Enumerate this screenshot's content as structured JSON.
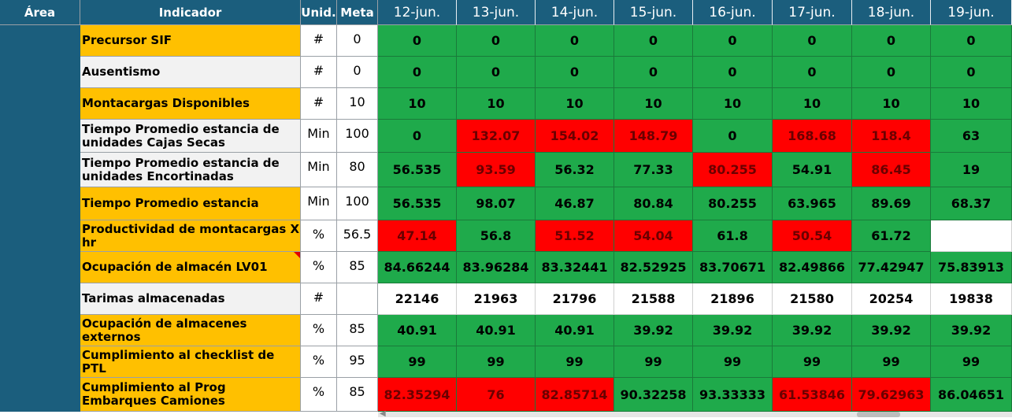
{
  "header": {
    "area": "Área",
    "indicador": "Indicador",
    "unid": "Unid.",
    "meta": "Meta",
    "dates": [
      "12-jun.",
      "13-jun.",
      "14-jun.",
      "15-jun.",
      "16-jun.",
      "17-jun.",
      "18-jun.",
      "19-jun."
    ]
  },
  "colors": {
    "header_bg": "#1b5e7d",
    "good": "#1faa4b",
    "bad": "#ff0000",
    "label_yellow": "#ffc000",
    "label_gray": "#f2f2f2"
  },
  "rows": [
    {
      "indicator": "Precursor SIF",
      "unit": "#",
      "meta": "0",
      "values": [
        "0",
        "0",
        "0",
        "0",
        "0",
        "0",
        "0",
        "0"
      ],
      "status": [
        "G",
        "G",
        "G",
        "G",
        "G",
        "G",
        "G",
        "G"
      ]
    },
    {
      "indicator": "Ausentismo",
      "unit": "#",
      "meta": "0",
      "values": [
        "0",
        "0",
        "0",
        "0",
        "0",
        "0",
        "0",
        "0"
      ],
      "status": [
        "G",
        "G",
        "G",
        "G",
        "G",
        "G",
        "G",
        "G"
      ]
    },
    {
      "indicator": "Montacargas Disponibles",
      "unit": "#",
      "meta": "10",
      "values": [
        "10",
        "10",
        "10",
        "10",
        "10",
        "10",
        "10",
        "10"
      ],
      "status": [
        "G",
        "G",
        "G",
        "G",
        "G",
        "G",
        "G",
        "G"
      ]
    },
    {
      "indicator": "Tiempo Promedio estancia de unidades Cajas Secas",
      "unit": "Min",
      "meta": "100",
      "values": [
        "0",
        "132.07",
        "154.02",
        "148.79",
        "0",
        "168.68",
        "118.4",
        "63"
      ],
      "status": [
        "G",
        "R",
        "R",
        "R",
        "G",
        "R",
        "R",
        "G"
      ]
    },
    {
      "indicator": "Tiempo Promedio estancia de unidades Encortinadas",
      "unit": "Min",
      "meta": "80",
      "values": [
        "56.535",
        "93.59",
        "56.32",
        "77.33",
        "80.255",
        "54.91",
        "86.45",
        "19"
      ],
      "status": [
        "G",
        "R",
        "G",
        "G",
        "R",
        "G",
        "R",
        "G"
      ]
    },
    {
      "indicator": "Tiempo Promedio estancia",
      "unit": "Min",
      "meta": "100",
      "values": [
        "56.535",
        "98.07",
        "46.87",
        "80.84",
        "80.255",
        "63.965",
        "89.69",
        "68.37"
      ],
      "status": [
        "G",
        "G",
        "G",
        "G",
        "G",
        "G",
        "G",
        "G"
      ]
    },
    {
      "indicator": "Productividad de montacargas X hr",
      "unit": "%",
      "meta": "56.5",
      "values": [
        "47.14",
        "56.8",
        "51.52",
        "54.04",
        "61.8",
        "50.54",
        "61.72",
        ""
      ],
      "status": [
        "R",
        "G",
        "R",
        "R",
        "G",
        "R",
        "G",
        "W"
      ]
    },
    {
      "indicator": "Ocupación de almacén LV01",
      "unit": "%",
      "meta": "85",
      "values": [
        "84.66244",
        "83.96284",
        "83.32441",
        "82.52925",
        "83.70671",
        "82.49866",
        "77.42947",
        "75.83913"
      ],
      "status": [
        "G",
        "G",
        "G",
        "G",
        "G",
        "G",
        "G",
        "G"
      ]
    },
    {
      "indicator": "Tarimas almacenadas",
      "unit": "#",
      "meta": "",
      "values": [
        "22146",
        "21963",
        "21796",
        "21588",
        "21896",
        "21580",
        "20254",
        "19838"
      ],
      "status": [
        "W",
        "W",
        "W",
        "W",
        "W",
        "W",
        "W",
        "W"
      ]
    },
    {
      "indicator": "Ocupación de almacenes externos",
      "unit": "%",
      "meta": "85",
      "values": [
        "40.91",
        "40.91",
        "40.91",
        "39.92",
        "39.92",
        "39.92",
        "39.92",
        "39.92"
      ],
      "status": [
        "G",
        "G",
        "G",
        "G",
        "G",
        "G",
        "G",
        "G"
      ]
    },
    {
      "indicator": "Cumplimiento al checklist de PTL",
      "unit": "%",
      "meta": "95",
      "values": [
        "99",
        "99",
        "99",
        "99",
        "99",
        "99",
        "99",
        "99"
      ],
      "status": [
        "G",
        "G",
        "G",
        "G",
        "G",
        "G",
        "G",
        "G"
      ]
    },
    {
      "indicator": "Cumplimiento al Prog Embarques Camiones",
      "unit": "%",
      "meta": "85",
      "values": [
        "82.35294",
        "76",
        "82.85714",
        "90.32258",
        "93.33333",
        "61.53846",
        "79.62963",
        "86.04651"
      ],
      "status": [
        "R",
        "R",
        "R",
        "G",
        "G",
        "R",
        "R",
        "G"
      ]
    }
  ]
}
